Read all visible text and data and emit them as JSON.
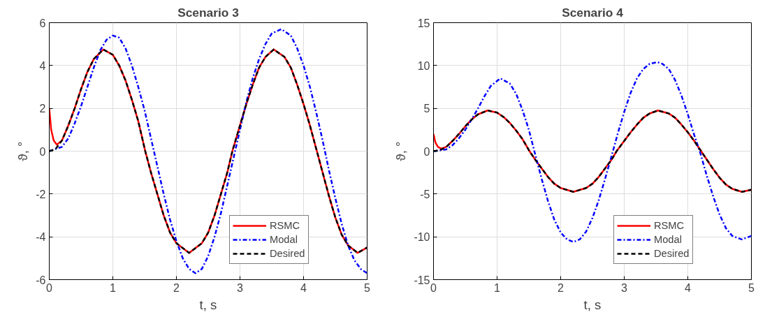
{
  "chart_data": [
    {
      "type": "line",
      "title": "Scenario 3",
      "xlabel": "t, s",
      "ylabel": "ϑ, °",
      "xlim": [
        0,
        5
      ],
      "ylim": [
        -6,
        6
      ],
      "xticks": [
        0,
        1,
        2,
        3,
        4,
        5
      ],
      "yticks": [
        -6,
        -4,
        -2,
        0,
        2,
        4,
        6
      ],
      "grid": true,
      "legend": "bottom right",
      "series": [
        {
          "name": "RSMC",
          "color": "#ff0000",
          "line_style": "solid",
          "x": [
            0,
            0.03,
            0.07,
            0.12,
            0.2,
            0.3,
            0.4,
            0.5,
            0.6,
            0.7,
            0.85,
            1.0,
            1.1,
            1.2,
            1.3,
            1.4,
            1.51,
            1.6,
            1.7,
            1.8,
            1.9,
            2.0,
            2.2,
            2.4,
            2.5,
            2.6,
            2.7,
            2.8,
            2.88,
            3.0,
            3.1,
            3.2,
            3.3,
            3.4,
            3.53,
            3.7,
            3.8,
            3.9,
            4.0,
            4.1,
            4.2,
            4.3,
            4.4,
            4.5,
            4.6,
            4.7,
            4.85,
            5.0
          ],
          "values": [
            2,
            1.0,
            0.5,
            0.3,
            0.5,
            1.2,
            2.0,
            2.9,
            3.7,
            4.3,
            4.75,
            4.5,
            4.0,
            3.3,
            2.4,
            1.4,
            0,
            -1.0,
            -2.0,
            -3.0,
            -3.8,
            -4.3,
            -4.75,
            -4.3,
            -3.8,
            -3.0,
            -2.0,
            -1.0,
            0,
            1.2,
            2.2,
            3.1,
            3.9,
            4.4,
            4.75,
            4.4,
            3.9,
            3.1,
            2.2,
            1.2,
            0.1,
            -1.0,
            -2.1,
            -3.1,
            -3.9,
            -4.4,
            -4.75,
            -4.5
          ]
        },
        {
          "name": "Modal",
          "color": "#0000ff",
          "line_style": "dashdot",
          "x": [
            0,
            0.2,
            0.3,
            0.4,
            0.5,
            0.6,
            0.7,
            0.8,
            0.9,
            1.0,
            1.1,
            1.2,
            1.3,
            1.4,
            1.5,
            1.6,
            1.7,
            1.8,
            1.9,
            2.0,
            2.1,
            2.2,
            2.3,
            2.4,
            2.5,
            2.6,
            2.7,
            2.8,
            2.9,
            3.0,
            3.1,
            3.2,
            3.3,
            3.4,
            3.5,
            3.65,
            3.8,
            3.9,
            4.0,
            4.1,
            4.2,
            4.3,
            4.4,
            4.5,
            4.6,
            4.7,
            4.8,
            4.9,
            5.0
          ],
          "values": [
            0,
            0.2,
            0.6,
            1.3,
            2.1,
            3.0,
            3.9,
            4.7,
            5.2,
            5.4,
            5.3,
            4.8,
            4.0,
            3.0,
            1.9,
            0.6,
            -0.7,
            -2.0,
            -3.2,
            -4.2,
            -5.0,
            -5.5,
            -5.7,
            -5.5,
            -4.9,
            -4.0,
            -2.9,
            -1.6,
            -0.3,
            1.0,
            2.3,
            3.4,
            4.3,
            5.0,
            5.5,
            5.7,
            5.4,
            4.8,
            4.0,
            3.0,
            1.8,
            0.5,
            -0.9,
            -2.2,
            -3.4,
            -4.4,
            -5.1,
            -5.5,
            -5.7
          ]
        },
        {
          "name": "Desired",
          "color": "#000000",
          "line_style": "dashed",
          "x": [
            0,
            0.1,
            0.2,
            0.3,
            0.4,
            0.5,
            0.6,
            0.7,
            0.85,
            1.0,
            1.1,
            1.2,
            1.3,
            1.4,
            1.51,
            1.6,
            1.7,
            1.8,
            1.9,
            2.0,
            2.2,
            2.4,
            2.5,
            2.6,
            2.7,
            2.8,
            2.88,
            3.0,
            3.1,
            3.2,
            3.3,
            3.4,
            3.53,
            3.7,
            3.8,
            3.9,
            4.0,
            4.1,
            4.2,
            4.3,
            4.4,
            4.5,
            4.6,
            4.7,
            4.85,
            5.0
          ],
          "values": [
            0,
            0.1,
            0.5,
            1.2,
            2.0,
            2.9,
            3.7,
            4.3,
            4.75,
            4.5,
            4.0,
            3.3,
            2.4,
            1.4,
            0,
            -1.0,
            -2.0,
            -3.0,
            -3.8,
            -4.3,
            -4.75,
            -4.3,
            -3.8,
            -3.0,
            -2.0,
            -1.0,
            0,
            1.2,
            2.2,
            3.1,
            3.9,
            4.4,
            4.75,
            4.4,
            3.9,
            3.1,
            2.2,
            1.2,
            0.1,
            -1.0,
            -2.1,
            -3.1,
            -3.9,
            -4.4,
            -4.75,
            -4.5
          ]
        }
      ]
    },
    {
      "type": "line",
      "title": "Scenario 4",
      "xlabel": "t, s",
      "ylabel": "ϑ, °",
      "xlim": [
        0,
        5
      ],
      "ylim": [
        -15,
        15
      ],
      "xticks": [
        0,
        1,
        2,
        3,
        4,
        5
      ],
      "yticks": [
        -15,
        -10,
        -5,
        0,
        5,
        10,
        15
      ],
      "grid": true,
      "legend": "bottom right",
      "series": [
        {
          "name": "RSMC",
          "color": "#ff0000",
          "line_style": "solid",
          "x": [
            0,
            0.03,
            0.07,
            0.12,
            0.2,
            0.3,
            0.4,
            0.5,
            0.6,
            0.7,
            0.85,
            1.0,
            1.1,
            1.2,
            1.3,
            1.4,
            1.51,
            1.6,
            1.7,
            1.8,
            1.9,
            2.0,
            2.2,
            2.4,
            2.5,
            2.6,
            2.7,
            2.8,
            2.88,
            3.0,
            3.1,
            3.2,
            3.3,
            3.4,
            3.53,
            3.7,
            3.8,
            3.9,
            4.0,
            4.1,
            4.2,
            4.3,
            4.4,
            4.5,
            4.6,
            4.7,
            4.85,
            5.0
          ],
          "values": [
            2,
            1.0,
            0.5,
            0.3,
            0.5,
            1.2,
            2.0,
            2.9,
            3.7,
            4.3,
            4.75,
            4.5,
            4.0,
            3.3,
            2.4,
            1.4,
            0,
            -1.0,
            -2.0,
            -3.0,
            -3.8,
            -4.3,
            -4.75,
            -4.3,
            -3.8,
            -3.0,
            -2.0,
            -1.0,
            0,
            1.2,
            2.2,
            3.1,
            3.9,
            4.4,
            4.75,
            4.4,
            3.9,
            3.1,
            2.2,
            1.2,
            0.1,
            -1.0,
            -2.1,
            -3.1,
            -3.9,
            -4.4,
            -4.75,
            -4.5
          ]
        },
        {
          "name": "Modal",
          "color": "#0000ff",
          "line_style": "dashdot",
          "x": [
            0,
            0.2,
            0.3,
            0.4,
            0.5,
            0.6,
            0.7,
            0.8,
            0.9,
            1.05,
            1.2,
            1.3,
            1.4,
            1.5,
            1.6,
            1.7,
            1.8,
            1.9,
            2.0,
            2.1,
            2.2,
            2.3,
            2.4,
            2.5,
            2.6,
            2.7,
            2.8,
            2.9,
            3.0,
            3.1,
            3.2,
            3.3,
            3.4,
            3.52,
            3.6,
            3.7,
            3.8,
            3.9,
            4.0,
            4.1,
            4.2,
            4.3,
            4.4,
            4.5,
            4.6,
            4.7,
            4.85,
            5.0
          ],
          "values": [
            0,
            0.2,
            0.7,
            1.5,
            2.5,
            3.7,
            5.0,
            6.4,
            7.6,
            8.5,
            7.9,
            6.7,
            4.8,
            2.5,
            -0.4,
            -3.2,
            -5.8,
            -8.0,
            -9.5,
            -10.3,
            -10.6,
            -10.3,
            -9.4,
            -7.8,
            -5.7,
            -3.2,
            -0.6,
            2.1,
            4.6,
            6.8,
            8.5,
            9.6,
            10.2,
            10.4,
            10.2,
            9.6,
            8.3,
            6.5,
            4.3,
            1.9,
            -0.3,
            -2.9,
            -5.3,
            -7.4,
            -9.0,
            -9.9,
            -10.3,
            -9.9
          ]
        },
        {
          "name": "Desired",
          "color": "#000000",
          "line_style": "dashed",
          "x": [
            0,
            0.1,
            0.2,
            0.3,
            0.4,
            0.5,
            0.6,
            0.7,
            0.85,
            1.0,
            1.1,
            1.2,
            1.3,
            1.4,
            1.51,
            1.6,
            1.7,
            1.8,
            1.9,
            2.0,
            2.2,
            2.4,
            2.5,
            2.6,
            2.7,
            2.8,
            2.88,
            3.0,
            3.1,
            3.2,
            3.3,
            3.4,
            3.53,
            3.7,
            3.8,
            3.9,
            4.0,
            4.1,
            4.2,
            4.3,
            4.4,
            4.5,
            4.6,
            4.7,
            4.85,
            5.0
          ],
          "values": [
            0,
            0.1,
            0.5,
            1.2,
            2.0,
            2.9,
            3.7,
            4.3,
            4.75,
            4.5,
            4.0,
            3.3,
            2.4,
            1.4,
            0,
            -1.0,
            -2.0,
            -3.0,
            -3.8,
            -4.3,
            -4.75,
            -4.3,
            -3.8,
            -3.0,
            -2.0,
            -1.0,
            0,
            1.2,
            2.2,
            3.1,
            3.9,
            4.4,
            4.75,
            4.4,
            3.9,
            3.1,
            2.2,
            1.2,
            0.1,
            -1.0,
            -2.1,
            -3.1,
            -3.9,
            -4.4,
            -4.75,
            -4.5
          ]
        }
      ]
    }
  ]
}
